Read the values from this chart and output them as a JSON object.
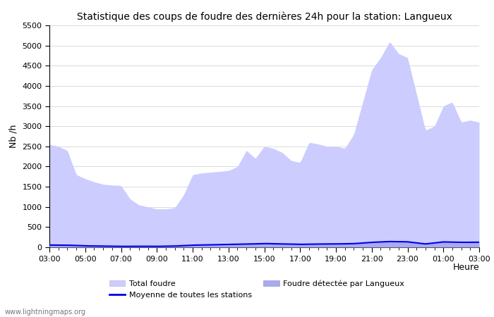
{
  "title": "Statistique des coups de foudre des dernières 24h pour la station: Langueux",
  "ylabel": "Nb /h",
  "xlabel": "Heure",
  "watermark": "www.lightningmaps.org",
  "ylim": [
    0,
    5500
  ],
  "yticks": [
    0,
    500,
    1000,
    1500,
    2000,
    2500,
    3000,
    3500,
    4000,
    4500,
    5000,
    5500
  ],
  "x_labels": [
    "03:00",
    "05:00",
    "07:00",
    "09:00",
    "11:00",
    "13:00",
    "15:00",
    "17:00",
    "19:00",
    "21:00",
    "23:00",
    "01:00",
    "03:00"
  ],
  "color_total": "#ccccff",
  "color_detected": "#aaaaee",
  "color_line": "#0000ee",
  "legend_total": "Total foudre",
  "legend_detected": "Foudre détectée par Langueux",
  "legend_moyenne": "Moyenne de toutes les stations",
  "total_x": [
    0,
    1,
    2,
    3,
    4,
    5,
    6,
    7,
    8,
    9,
    10,
    11,
    12,
    13,
    14,
    15,
    16,
    17,
    18,
    19,
    20,
    21,
    22,
    23,
    24,
    25,
    26,
    27,
    28,
    29,
    30,
    31,
    32,
    33,
    34,
    35,
    36,
    37,
    38,
    39,
    40,
    41,
    42,
    43,
    44,
    45,
    46,
    47,
    48
  ],
  "total_y": [
    2550,
    2500,
    2400,
    1800,
    1700,
    1620,
    1560,
    1540,
    1530,
    1200,
    1050,
    1000,
    950,
    950,
    980,
    1300,
    1800,
    1840,
    1860,
    1880,
    1900,
    2000,
    2400,
    2200,
    2500,
    2450,
    2350,
    2150,
    2100,
    2600,
    2560,
    2500,
    2500,
    2450,
    2800,
    3600,
    4400,
    4700,
    5100,
    4800,
    4700,
    3800,
    2900,
    3000,
    3500,
    3600,
    3100,
    3150,
    3100
  ],
  "detected_x": [
    0,
    4,
    8,
    12,
    16,
    20,
    24,
    28,
    32,
    36,
    38,
    40,
    42,
    44,
    46,
    48
  ],
  "detected_y": [
    55,
    30,
    20,
    20,
    50,
    70,
    90,
    70,
    80,
    120,
    140,
    130,
    80,
    130,
    120,
    120
  ],
  "moyenne_x": [
    0,
    2,
    4,
    6,
    8,
    10,
    12,
    14,
    16,
    18,
    20,
    22,
    24,
    26,
    28,
    30,
    32,
    34,
    36,
    38,
    40,
    42,
    44,
    46,
    48
  ],
  "moyenne_y": [
    55,
    52,
    35,
    28,
    22,
    25,
    22,
    30,
    52,
    60,
    70,
    80,
    92,
    82,
    72,
    80,
    82,
    90,
    122,
    142,
    135,
    82,
    132,
    122,
    125
  ]
}
